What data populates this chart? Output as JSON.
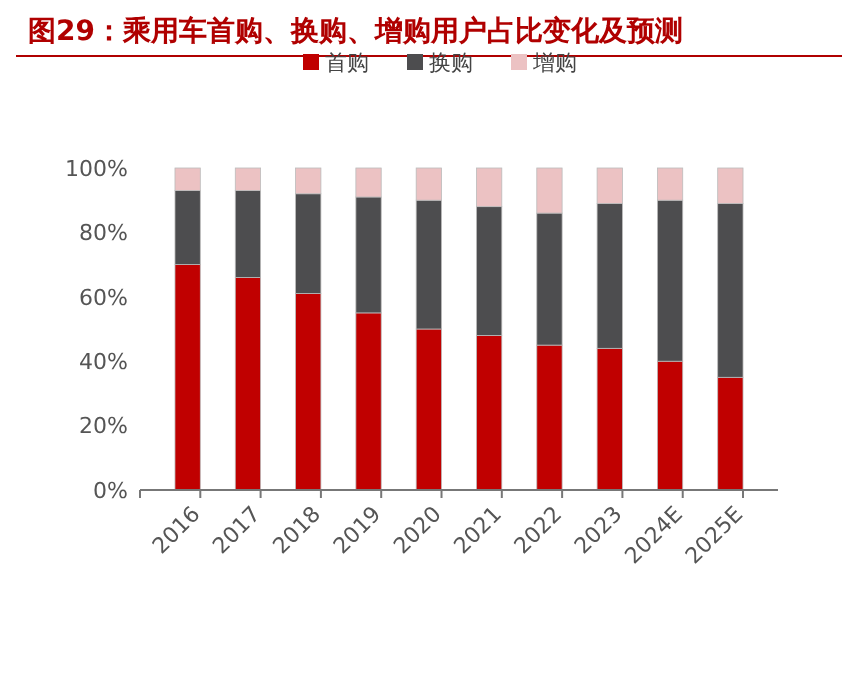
{
  "chart_data": {
    "type": "bar",
    "title": "图29：乘用车首购、换购、增购用户占比变化及预测",
    "categories": [
      "2016",
      "2017",
      "2018",
      "2019",
      "2020",
      "2021",
      "2022",
      "2023",
      "2024E",
      "2025E"
    ],
    "stacked": true,
    "legend": "top",
    "ylim": [
      0,
      100
    ],
    "yticks": [
      {
        "value": 0,
        "label": "0%"
      },
      {
        "value": 20,
        "label": "20%"
      },
      {
        "value": 40,
        "label": "40%"
      },
      {
        "value": 60,
        "label": "60%"
      },
      {
        "value": 80,
        "label": "80%"
      },
      {
        "value": 100,
        "label": "100%"
      }
    ],
    "grid": false,
    "series": [
      {
        "name": "首购",
        "color": "#c00000",
        "values": [
          70,
          66,
          61,
          55,
          50,
          48,
          45,
          44,
          40,
          35
        ]
      },
      {
        "name": "换购",
        "color": "#4d4d4f",
        "values": [
          23,
          27,
          31,
          36,
          40,
          40,
          41,
          45,
          50,
          54
        ]
      },
      {
        "name": "增购",
        "color": "#ecc2c3",
        "values": [
          7,
          7,
          8,
          9,
          10,
          12,
          14,
          11,
          10,
          11
        ]
      }
    ]
  }
}
